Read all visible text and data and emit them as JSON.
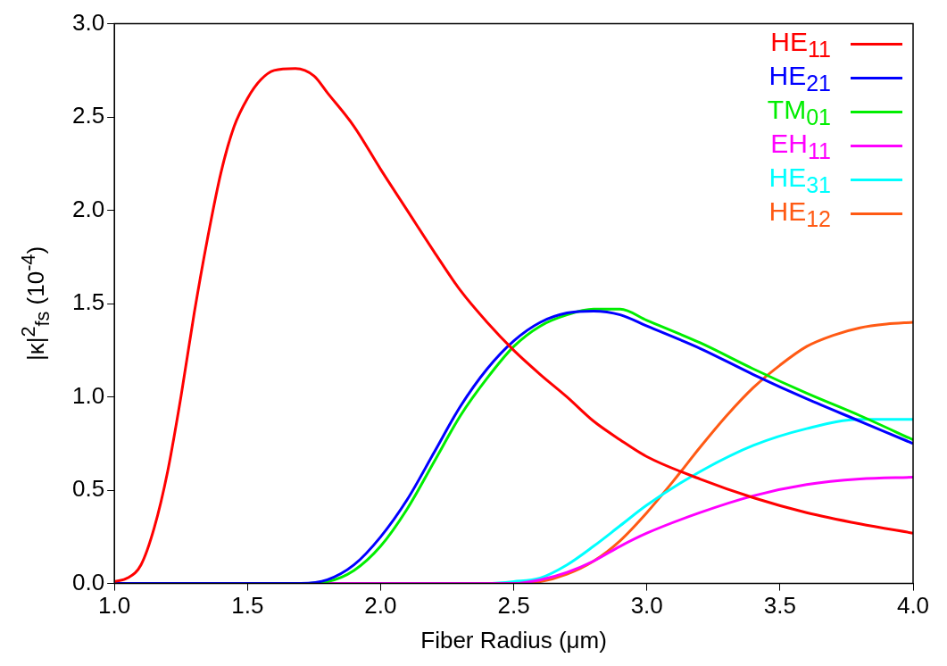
{
  "chart_data": {
    "type": "line",
    "xlabel": "Fiber Radius (μm)",
    "ylabel": "|κ|$^{2}$$_{fs}$  (10$^{-4}$)",
    "xlim": [
      1.0,
      4.0
    ],
    "ylim": [
      0.0,
      3.0
    ],
    "xticks": [
      {
        "value": 1,
        "label": "1.0"
      },
      {
        "value": 1.5,
        "label": "1.5"
      },
      {
        "value": 2,
        "label": "2.0"
      },
      {
        "value": 2.5,
        "label": "2.5"
      },
      {
        "value": 3,
        "label": "3.0"
      },
      {
        "value": 3.5,
        "label": "3.5"
      },
      {
        "value": 4,
        "label": "4.0"
      }
    ],
    "yticks": [
      {
        "value": 0,
        "label": "0.0"
      },
      {
        "value": 0.5,
        "label": "0.5"
      },
      {
        "value": 1,
        "label": "1.0"
      },
      {
        "value": 1.5,
        "label": "1.5"
      },
      {
        "value": 2,
        "label": "2.0"
      },
      {
        "value": 2.5,
        "label": "2.5"
      },
      {
        "value": 3,
        "label": "3.0"
      }
    ],
    "grid": false,
    "legend": "top right",
    "marker": "none",
    "line_style": "solid",
    "series": [
      {
        "name": "HE$_{11}$",
        "color": "#ff0000",
        "x": [
          1.0,
          1.05,
          1.1,
          1.15,
          1.2,
          1.25,
          1.3,
          1.35,
          1.4,
          1.45,
          1.5,
          1.55,
          1.6,
          1.68,
          1.75,
          1.8,
          1.9,
          2.0,
          2.1,
          2.2,
          2.3,
          2.4,
          2.5,
          2.6,
          2.7,
          2.8,
          2.9,
          3.0,
          3.2,
          3.4,
          3.6,
          3.8,
          4.0
        ],
        "values": [
          0.01,
          0.03,
          0.1,
          0.3,
          0.6,
          1.0,
          1.45,
          1.85,
          2.2,
          2.45,
          2.6,
          2.7,
          2.75,
          2.76,
          2.72,
          2.63,
          2.45,
          2.22,
          2.0,
          1.78,
          1.57,
          1.4,
          1.25,
          1.12,
          1.0,
          0.87,
          0.77,
          0.68,
          0.56,
          0.46,
          0.38,
          0.32,
          0.27
        ]
      },
      {
        "name": "HE$_{21}$",
        "color": "#0000ff",
        "x": [
          1.0,
          1.7,
          1.8,
          1.9,
          2.0,
          2.1,
          2.2,
          2.3,
          2.4,
          2.5,
          2.6,
          2.7,
          2.8,
          2.9,
          3.0,
          3.2,
          3.4,
          3.6,
          3.8,
          4.0
        ],
        "values": [
          0,
          0,
          0.02,
          0.1,
          0.25,
          0.45,
          0.7,
          0.95,
          1.15,
          1.3,
          1.4,
          1.45,
          1.46,
          1.44,
          1.38,
          1.26,
          1.12,
          0.99,
          0.87,
          0.75
        ]
      },
      {
        "name": "TM$_{01}$",
        "color": "#00ee00",
        "x": [
          1.0,
          1.7,
          1.8,
          1.9,
          2.0,
          2.1,
          2.2,
          2.3,
          2.4,
          2.5,
          2.6,
          2.7,
          2.8,
          2.9,
          3.0,
          3.2,
          3.4,
          3.6,
          3.8,
          4.0
        ],
        "values": [
          0,
          0,
          0.01,
          0.07,
          0.2,
          0.4,
          0.65,
          0.9,
          1.1,
          1.27,
          1.38,
          1.44,
          1.47,
          1.47,
          1.41,
          1.29,
          1.15,
          1.02,
          0.9,
          0.77
        ]
      },
      {
        "name": "EH$_{11}$",
        "color": "#ff00ff",
        "x": [
          1.0,
          2.5,
          2.6,
          2.7,
          2.8,
          2.9,
          3.0,
          3.2,
          3.4,
          3.6,
          3.8,
          4.0
        ],
        "values": [
          0,
          0,
          0.02,
          0.06,
          0.12,
          0.2,
          0.27,
          0.38,
          0.47,
          0.53,
          0.56,
          0.57
        ]
      },
      {
        "name": "HE$_{31}$",
        "color": "#00ffff",
        "x": [
          1.0,
          2.4,
          2.5,
          2.6,
          2.7,
          2.8,
          2.9,
          3.0,
          3.2,
          3.4,
          3.6,
          3.8,
          4.0
        ],
        "values": [
          0,
          0,
          0.01,
          0.03,
          0.1,
          0.2,
          0.31,
          0.42,
          0.6,
          0.74,
          0.83,
          0.88,
          0.88
        ]
      },
      {
        "name": "HE$_{12}$",
        "color": "#ff5a14",
        "x": [
          1.0,
          2.5,
          2.6,
          2.7,
          2.8,
          2.9,
          3.0,
          3.1,
          3.2,
          3.3,
          3.4,
          3.5,
          3.6,
          3.7,
          3.8,
          3.9,
          4.0
        ],
        "values": [
          0,
          0,
          0.01,
          0.05,
          0.12,
          0.23,
          0.38,
          0.55,
          0.73,
          0.9,
          1.05,
          1.17,
          1.27,
          1.33,
          1.37,
          1.39,
          1.4
        ]
      }
    ]
  }
}
